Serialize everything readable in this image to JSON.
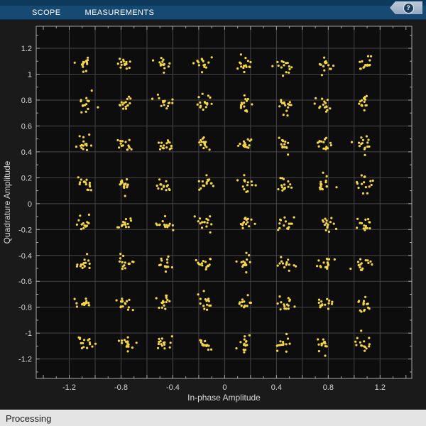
{
  "toolbar": {
    "tabs": [
      {
        "label": "SCOPE"
      },
      {
        "label": "MEASUREMENTS"
      }
    ],
    "help_glyph": "?",
    "colors": {
      "band_top": "#0D395C",
      "tab_row": "#164A72",
      "help_bg": "#A9BCCD",
      "help_circle": "#1C3C60"
    }
  },
  "status_bar": {
    "text": "Processing"
  },
  "chart_data": {
    "type": "scatter",
    "title": "",
    "xlabel": "In-phase Amplitude",
    "ylabel": "Quadrature Amplitude",
    "xlim": [
      -1.455,
      1.445
    ],
    "ylim": [
      -1.35,
      1.37
    ],
    "grid": "on",
    "grid_step": 0.2,
    "minor_tick_step": 0.1,
    "x_ticks": [
      {
        "v": -1.2,
        "label": "-1.2"
      },
      {
        "v": -0.8,
        "label": "-0.8"
      },
      {
        "v": -0.4,
        "label": "-0.4"
      },
      {
        "v": 0,
        "label": "0"
      },
      {
        "v": 0.4,
        "label": "0.4"
      },
      {
        "v": 0.8,
        "label": "0.8"
      },
      {
        "v": 1.2,
        "label": "1.2"
      }
    ],
    "y_ticks": [
      {
        "v": 1.2,
        "label": "1.2"
      },
      {
        "v": 1,
        "label": "1"
      },
      {
        "v": 0.8,
        "label": "0.8"
      },
      {
        "v": 0.6,
        "label": "0.6"
      },
      {
        "v": 0.4,
        "label": "0.4"
      },
      {
        "v": 0.2,
        "label": "0.2"
      },
      {
        "v": 0,
        "label": "0"
      },
      {
        "v": -0.2,
        "label": "-0.2"
      },
      {
        "v": -0.4,
        "label": "-0.4"
      },
      {
        "v": -0.6,
        "label": "-0.6"
      },
      {
        "v": -0.8,
        "label": "-0.8"
      },
      {
        "v": -1,
        "label": "-1"
      },
      {
        "v": -1.2,
        "label": "-1.2"
      }
    ],
    "constellation": {
      "modulation": "64-QAM",
      "levels": [
        -1.0801,
        -0.7715,
        -0.4629,
        -0.1543,
        0.1543,
        0.4629,
        0.7715,
        1.0801
      ],
      "points_per_cluster": 15,
      "noise_std": 0.03,
      "seed": 7
    },
    "marker": {
      "color": "#F5D741",
      "radius_px": 1.6
    },
    "colors": {
      "plot_bg": "#0D0D0D",
      "figure_bg": "#1A1A1A",
      "grid_line": "#454545",
      "axis_line": "#A8A8A8",
      "tick_mark": "#A8A8A8",
      "tick_label": "#D6D6D6",
      "axis_label": "#D6D6D6"
    }
  }
}
